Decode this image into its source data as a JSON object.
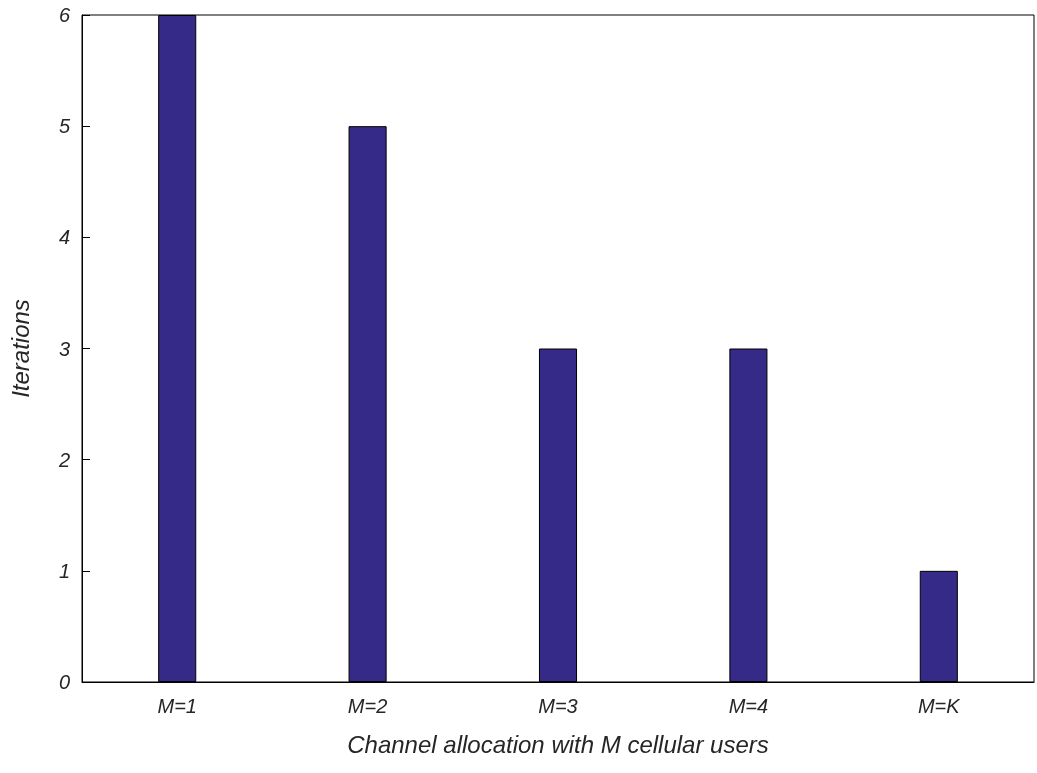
{
  "chart_data": {
    "type": "bar",
    "xlabel": "Channel allocation with M cellular users",
    "ylabel": "Iterations",
    "categories": [
      "M=1",
      "M=2",
      "M=3",
      "M=4",
      "M=K"
    ],
    "values": [
      6,
      5,
      3,
      3,
      1
    ],
    "color": "#352a87",
    "ylim": [
      0,
      6
    ],
    "yticks": [
      0,
      1,
      2,
      3,
      4,
      5,
      6
    ],
    "grid": false
  }
}
